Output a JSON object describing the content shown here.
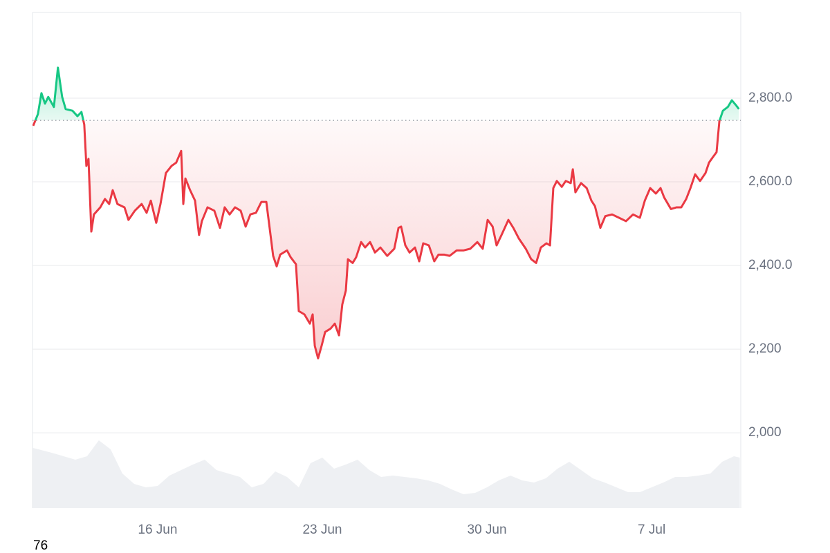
{
  "chart_data": {
    "type": "line",
    "x": [
      10.71,
      10.91,
      11.06,
      11.21,
      11.35,
      11.59,
      11.76,
      11.94,
      12.09,
      12.38,
      12.59,
      12.76,
      12.88,
      12.97,
      13.06,
      13.18,
      13.29,
      13.56,
      13.76,
      13.94,
      14.09,
      14.29,
      14.59,
      14.76,
      15.03,
      15.32,
      15.53,
      15.71,
      15.94,
      16.12,
      16.35,
      16.59,
      16.79,
      17.0,
      17.09,
      17.18,
      17.38,
      17.59,
      17.76,
      17.88,
      18.12,
      18.41,
      18.65,
      18.85,
      19.06,
      19.29,
      19.53,
      19.74,
      19.94,
      20.18,
      20.41,
      20.62,
      20.76,
      20.91,
      21.06,
      21.21,
      21.5,
      21.65,
      21.88,
      22.0,
      22.24,
      22.47,
      22.59,
      22.68,
      22.82,
      22.97,
      23.12,
      23.35,
      23.53,
      23.71,
      23.85,
      24.0,
      24.09,
      24.29,
      24.44,
      24.65,
      24.82,
      25.03,
      25.24,
      25.47,
      25.76,
      26.06,
      26.24,
      26.35,
      26.53,
      26.71,
      26.94,
      27.12,
      27.29,
      27.53,
      27.76,
      27.94,
      28.18,
      28.41,
      28.71,
      29.0,
      29.29,
      29.59,
      29.82,
      30.03,
      30.24,
      30.41,
      30.62,
      30.91,
      31.12,
      31.35,
      31.65,
      31.88,
      32.09,
      32.29,
      32.53,
      32.68,
      32.82,
      32.97,
      33.18,
      33.35,
      33.56,
      33.65,
      33.76,
      34.0,
      34.24,
      34.44,
      34.59,
      34.82,
      35.03,
      35.32,
      35.62,
      35.91,
      36.21,
      36.5,
      36.71,
      36.94,
      37.18,
      37.38,
      37.53,
      37.82,
      38.06,
      38.26,
      38.47,
      38.65,
      38.85,
      39.06,
      39.29,
      39.44,
      39.59,
      39.76,
      39.88,
      40.03,
      40.24,
      40.41,
      40.59,
      40.71
    ],
    "values": [
      2734,
      2762,
      2812,
      2787,
      2803,
      2779,
      2873,
      2803,
      2774,
      2770,
      2757,
      2767,
      2737,
      2638,
      2655,
      2481,
      2522,
      2539,
      2559,
      2547,
      2580,
      2547,
      2539,
      2509,
      2531,
      2547,
      2526,
      2555,
      2502,
      2547,
      2621,
      2638,
      2646,
      2674,
      2547,
      2608,
      2580,
      2555,
      2473,
      2506,
      2539,
      2531,
      2490,
      2539,
      2522,
      2539,
      2531,
      2493,
      2522,
      2526,
      2552,
      2552,
      2490,
      2423,
      2398,
      2426,
      2436,
      2420,
      2403,
      2291,
      2283,
      2261,
      2283,
      2208,
      2178,
      2208,
      2241,
      2249,
      2261,
      2233,
      2307,
      2340,
      2415,
      2406,
      2420,
      2456,
      2443,
      2456,
      2431,
      2443,
      2423,
      2440,
      2490,
      2493,
      2448,
      2431,
      2443,
      2410,
      2453,
      2448,
      2410,
      2426,
      2426,
      2423,
      2436,
      2436,
      2440,
      2456,
      2440,
      2509,
      2493,
      2448,
      2473,
      2509,
      2490,
      2465,
      2440,
      2415,
      2406,
      2443,
      2453,
      2448,
      2585,
      2602,
      2588,
      2602,
      2597,
      2630,
      2575,
      2597,
      2585,
      2555,
      2542,
      2490,
      2518,
      2522,
      2514,
      2506,
      2522,
      2514,
      2555,
      2585,
      2572,
      2585,
      2563,
      2535,
      2539,
      2539,
      2559,
      2585,
      2618,
      2602,
      2621,
      2646,
      2658,
      2671,
      2745,
      2770,
      2779,
      2795,
      2783,
      2774
    ],
    "baseline": 2747,
    "up_color": "#16c784",
    "down_color": "#ea3943",
    "xlim": [
      10.68,
      40.79
    ],
    "xticks": [
      {
        "value": 16,
        "label": "16 Jun"
      },
      {
        "value": 23,
        "label": "23 Jun"
      },
      {
        "value": 30,
        "label": "30 Jun"
      },
      {
        "value": 37,
        "label": "7 Jul"
      }
    ],
    "ylim": [
      1820,
      3005
    ],
    "yticks": [
      {
        "value": 2000,
        "label": "2,000"
      },
      {
        "value": 2200,
        "label": "2,200"
      },
      {
        "value": 2400,
        "label": "2,400.0"
      },
      {
        "value": 2600,
        "label": "2,600.0"
      },
      {
        "value": 2800,
        "label": "2,800.0"
      }
    ],
    "grid": true,
    "volume": {
      "color": "#eef0f3",
      "ylim": [
        0,
        100
      ],
      "x": [
        10.7,
        11.5,
        12.5,
        13,
        13.5,
        14,
        14.5,
        15,
        15.5,
        16,
        16.5,
        17,
        17.5,
        18,
        18.5,
        19,
        19.5,
        20,
        20.5,
        21,
        21.5,
        22,
        22.5,
        23,
        23.5,
        24,
        24.5,
        25,
        25.5,
        26,
        26.5,
        27,
        27.5,
        28,
        28.5,
        29,
        29.5,
        30,
        30.5,
        31,
        31.5,
        32,
        32.5,
        33,
        33.5,
        34,
        34.5,
        35,
        35.5,
        36,
        36.5,
        37,
        37.5,
        38,
        38.5,
        39,
        39.5,
        40,
        40.5,
        40.75
      ],
      "values": [
        87,
        80,
        70,
        75,
        98,
        85,
        50,
        35,
        30,
        32,
        47,
        55,
        63,
        70,
        55,
        50,
        45,
        30,
        35,
        53,
        45,
        30,
        65,
        73,
        57,
        63,
        70,
        55,
        45,
        47,
        45,
        43,
        40,
        35,
        27,
        20,
        22,
        30,
        40,
        47,
        40,
        37,
        43,
        57,
        67,
        55,
        43,
        37,
        30,
        23,
        23,
        30,
        37,
        45,
        45,
        47,
        50,
        67,
        75,
        73
      ]
    }
  },
  "footer": "76"
}
